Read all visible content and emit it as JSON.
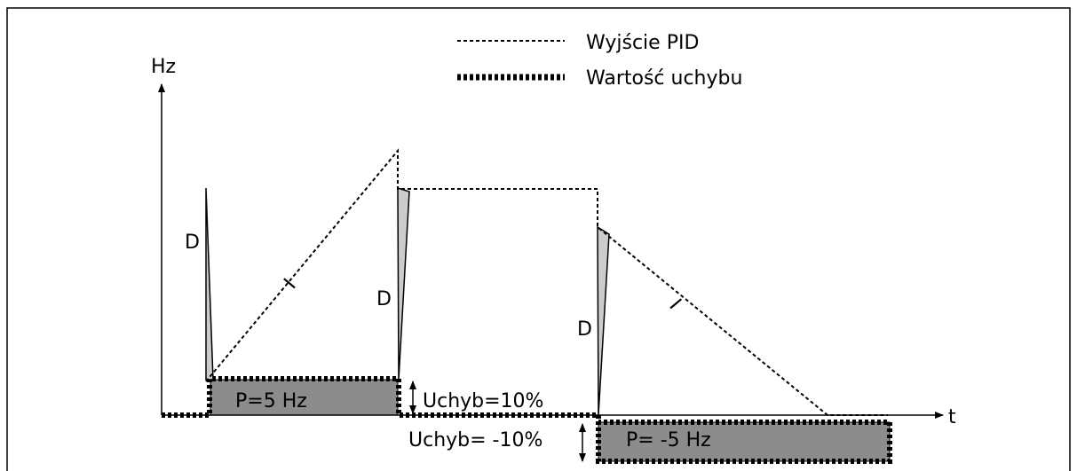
{
  "legend": [
    {
      "label": "Wyjście PID"
    },
    {
      "label": "Wartość uchybu"
    }
  ],
  "axes": {
    "y": "Hz",
    "x": "t"
  },
  "annotations": {
    "d": [
      "D",
      "D",
      "D"
    ],
    "i": [
      "I",
      "I"
    ],
    "p_pos": "P=5 Hz",
    "p_neg": "P= -5 Hz",
    "error_pos": "Uchyb=10%",
    "error_neg": "Uchyb= -10%"
  }
}
